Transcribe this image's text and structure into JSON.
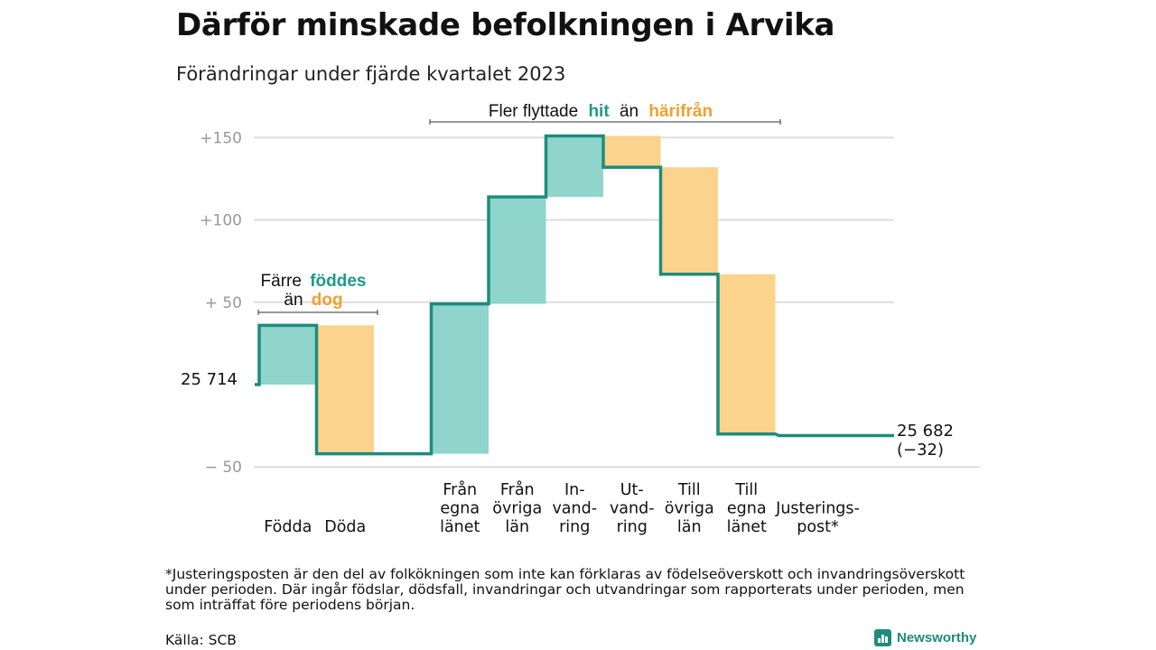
{
  "title": "Därför minskade befolkningen i Arvika",
  "subtitle": "Förändringar under fjärde kvartalet 2023",
  "colors": {
    "inflow": "#8fd5cc",
    "outflow": "#fbd38d",
    "line": "#1d8c7d",
    "accent_hit": "#1d9a8a",
    "accent_harifran": "#f0a030",
    "grid": "#dddddd",
    "axis_text": "#999999"
  },
  "annotations": {
    "births": {
      "prefix": "Färre",
      "highlight": "föddes",
      "line2_prefix": "än",
      "line2_highlight": "dog"
    },
    "migration": {
      "prefix": "Fler flyttade",
      "highlight1": "hit",
      "middle": "än",
      "highlight2": "härifrån"
    }
  },
  "chart_data": {
    "type": "waterfall",
    "title": "Därför minskade befolkningen i Arvika",
    "subtitle": "Förändringar under fjärde kvartalet 2023",
    "start_label": "25  714",
    "start_value": 25714,
    "end_label_line1": "25 682",
    "end_label_line2": "(−32)",
    "end_value": 25682,
    "total_change": -32,
    "ylim": [
      -50,
      150
    ],
    "yticks": [
      {
        "value": 150,
        "label": "+150"
      },
      {
        "value": 100,
        "label": "+100"
      },
      {
        "value": 50,
        "label": "+  50"
      },
      {
        "value": -50,
        "label": "−  50"
      }
    ],
    "steps": [
      {
        "category": [
          "Födda"
        ],
        "change": 36,
        "kind": "inflow"
      },
      {
        "category": [
          "Döda"
        ],
        "change": -78,
        "kind": "outflow"
      },
      {
        "category": [],
        "change": 0,
        "kind": "gap"
      },
      {
        "category": [
          "Från",
          "egna",
          "länet"
        ],
        "change": 91,
        "kind": "inflow"
      },
      {
        "category": [
          "Från",
          "övriga",
          "län"
        ],
        "change": 65,
        "kind": "inflow"
      },
      {
        "category": [
          "In-",
          "vand-",
          "ring"
        ],
        "change": 37,
        "kind": "inflow"
      },
      {
        "category": [
          "Ut-",
          "vand-",
          "ring"
        ],
        "change": -19,
        "kind": "outflow"
      },
      {
        "category": [
          "Till",
          "övriga",
          "län"
        ],
        "change": -65,
        "kind": "outflow"
      },
      {
        "category": [
          "Till",
          "egna",
          "länet"
        ],
        "change": -97,
        "kind": "outflow"
      },
      {
        "category": [
          "Justerings-",
          "post*"
        ],
        "change": -1,
        "kind": "adjustment"
      }
    ]
  },
  "footnote": "*Justeringsposten är den del av folkökningen som inte kan förklaras av födelseöverskott och invandringsöverskott under perioden. Där ingår födslar, dödsfall, invandringar och utvandringar som rapporterats under perioden, men som inträffat före periodens början.",
  "source": "Källa: SCB",
  "brand": "Newsworthy"
}
